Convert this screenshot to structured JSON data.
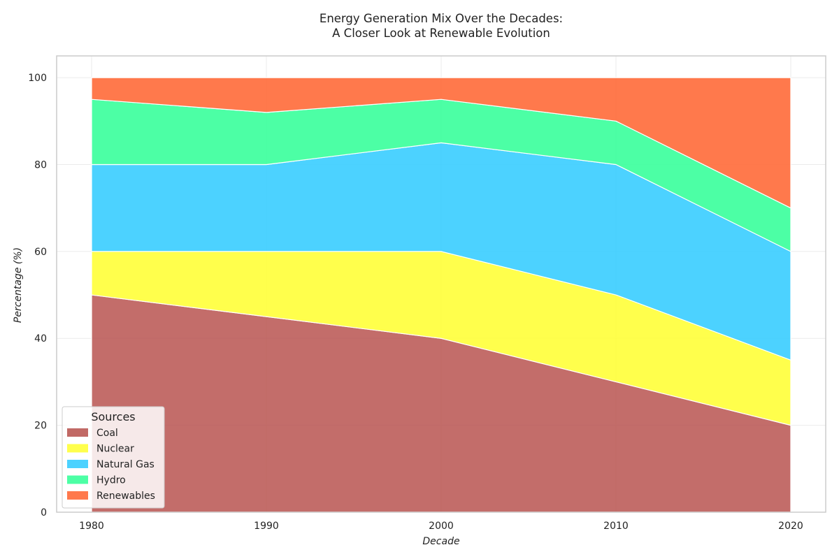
{
  "chart_data": {
    "type": "area",
    "stacked": true,
    "title_lines": [
      "Energy Generation Mix Over the Decades:",
      "A Closer Look at Renewable Evolution"
    ],
    "xlabel": "Decade",
    "ylabel": "Percentage (%)",
    "x": [
      1980,
      1990,
      2000,
      2010,
      2020
    ],
    "x_tick_labels": [
      "1980",
      "1990",
      "2000",
      "2010",
      "2020"
    ],
    "y_ticks": [
      0,
      20,
      40,
      60,
      80,
      100
    ],
    "y_tick_labels": [
      "0",
      "20",
      "40",
      "60",
      "80",
      "100"
    ],
    "xlim": [
      1978,
      2022
    ],
    "ylim": [
      0,
      105
    ],
    "grid": true,
    "legend": {
      "title": "Sources",
      "placement": "lower-left"
    },
    "series": [
      {
        "name": "Coal",
        "color": "#b85450",
        "values": [
          50,
          45,
          40,
          30,
          20
        ]
      },
      {
        "name": "Nuclear",
        "color": "#ffff33",
        "values": [
          10,
          15,
          20,
          20,
          15
        ]
      },
      {
        "name": "Natural Gas",
        "color": "#33ccff",
        "values": [
          20,
          20,
          25,
          30,
          25
        ]
      },
      {
        "name": "Hydro",
        "color": "#33ff99",
        "values": [
          15,
          12,
          10,
          10,
          10
        ]
      },
      {
        "name": "Renewables",
        "color": "#ff6633",
        "values": [
          5,
          8,
          5,
          10,
          30
        ]
      }
    ]
  }
}
